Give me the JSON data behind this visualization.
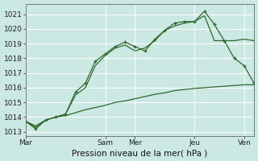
{
  "bg_color": "#cce8e3",
  "grid_color": "#b8dbd6",
  "line_color": "#2d6a2d",
  "xlabel": "Pression niveau de la mer( hPa )",
  "ylim": [
    1012.7,
    1021.7
  ],
  "yticks": [
    1013,
    1014,
    1015,
    1016,
    1017,
    1018,
    1019,
    1020,
    1021
  ],
  "xtick_labels": [
    "Mar",
    "Sam",
    "Mer",
    "Jeu",
    "Ven"
  ],
  "xtick_positions": [
    0,
    16,
    22,
    34,
    44
  ],
  "xlim": [
    0,
    46
  ],
  "x_marker": [
    0,
    2,
    4,
    6,
    8,
    10,
    12,
    14,
    16,
    18,
    20,
    22,
    24,
    26,
    28,
    30,
    32,
    34,
    36,
    38,
    40,
    42,
    44,
    46
  ],
  "s1_y": [
    1013.7,
    1013.2,
    1013.8,
    1014.0,
    1014.2,
    1015.7,
    1016.3,
    1017.8,
    1018.3,
    1018.8,
    1019.1,
    1018.8,
    1018.5,
    1019.3,
    1019.9,
    1020.4,
    1020.5,
    1020.5,
    1021.2,
    1020.3,
    1019.2,
    1018.0,
    1017.5,
    1016.3
  ],
  "x_smooth1": [
    0,
    2,
    4,
    6,
    8,
    10,
    12,
    14,
    16,
    18,
    20,
    22,
    24,
    26,
    28,
    30,
    32,
    34,
    36,
    38,
    40,
    42,
    44,
    46
  ],
  "s2_y": [
    1013.7,
    1013.3,
    1013.8,
    1014.0,
    1014.2,
    1015.5,
    1016.0,
    1017.5,
    1018.2,
    1018.7,
    1018.9,
    1018.5,
    1018.7,
    1019.2,
    1019.9,
    1020.2,
    1020.4,
    1020.5,
    1020.9,
    1019.2,
    1019.2,
    1019.2,
    1019.3,
    1019.2
  ],
  "x_smooth2": [
    0,
    2,
    4,
    6,
    8,
    10,
    12,
    14,
    16,
    18,
    20,
    22,
    24,
    26,
    28,
    30,
    32,
    34,
    36,
    38,
    40,
    42,
    44,
    46
  ],
  "s3_y": [
    1013.7,
    1013.4,
    1013.8,
    1014.0,
    1014.1,
    1014.3,
    1014.5,
    1014.65,
    1014.8,
    1015.0,
    1015.1,
    1015.25,
    1015.4,
    1015.55,
    1015.65,
    1015.8,
    1015.88,
    1015.95,
    1016.0,
    1016.05,
    1016.1,
    1016.15,
    1016.2,
    1016.2
  ]
}
